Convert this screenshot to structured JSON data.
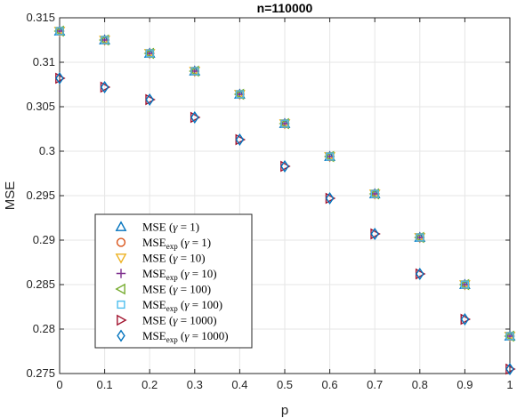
{
  "chart_data": {
    "type": "scatter",
    "title": "n=110000",
    "xlabel": "p",
    "ylabel": "MSE",
    "xlim": [
      0,
      1
    ],
    "ylim": [
      0.275,
      0.315
    ],
    "grid": true,
    "legend_position": "bottom-left",
    "x": [
      0,
      0.1,
      0.2,
      0.3,
      0.4,
      0.5,
      0.6,
      0.7,
      0.8,
      0.9,
      1.0
    ],
    "xticks": [
      "0",
      "0.1",
      "0.2",
      "0.3",
      "0.4",
      "0.5",
      "0.6",
      "0.7",
      "0.8",
      "0.9",
      "1"
    ],
    "yticks": [
      {
        "value": 0.275,
        "label": "0.275"
      },
      {
        "value": 0.28,
        "label": "0.28"
      },
      {
        "value": 0.285,
        "label": "0.285"
      },
      {
        "value": 0.29,
        "label": "0.29"
      },
      {
        "value": 0.295,
        "label": "0.295"
      },
      {
        "value": 0.3,
        "label": "0.3"
      },
      {
        "value": 0.305,
        "label": "0.305"
      },
      {
        "value": 0.31,
        "label": "0.31"
      },
      {
        "value": 0.315,
        "label": "0.315"
      }
    ],
    "series": [
      {
        "name": "MSE (γ = 1)",
        "marker": "triangle-up",
        "color": "#0072BD",
        "values": [
          0.3135,
          0.3125,
          0.311,
          0.309,
          0.3064,
          0.3031,
          0.2994,
          0.2952,
          0.2903,
          0.285,
          0.2792
        ]
      },
      {
        "name": "MSE_exp (γ = 1)",
        "marker": "circle",
        "color": "#D95319",
        "values": [
          0.3135,
          0.3125,
          0.311,
          0.309,
          0.3064,
          0.3031,
          0.2994,
          0.2952,
          0.2903,
          0.285,
          0.2792
        ]
      },
      {
        "name": "MSE (γ = 10)",
        "marker": "triangle-down",
        "color": "#EDB120",
        "values": [
          0.3135,
          0.3125,
          0.311,
          0.309,
          0.3064,
          0.3031,
          0.2994,
          0.2952,
          0.2903,
          0.285,
          0.2792
        ]
      },
      {
        "name": "MSE_exp (γ = 10)",
        "marker": "plus",
        "color": "#7E2F8E",
        "values": [
          0.3135,
          0.3125,
          0.311,
          0.309,
          0.3064,
          0.3031,
          0.2994,
          0.2952,
          0.2903,
          0.285,
          0.2792
        ]
      },
      {
        "name": "MSE (γ = 100)",
        "marker": "triangle-left",
        "color": "#77AC30",
        "values": [
          0.3135,
          0.3125,
          0.311,
          0.309,
          0.3064,
          0.3031,
          0.2994,
          0.2952,
          0.2903,
          0.285,
          0.2792
        ]
      },
      {
        "name": "MSE_exp (γ = 100)",
        "marker": "square",
        "color": "#4DBEEE",
        "values": [
          0.3135,
          0.3125,
          0.311,
          0.309,
          0.3064,
          0.3031,
          0.2994,
          0.2952,
          0.2903,
          0.285,
          0.2792
        ]
      },
      {
        "name": "MSE (γ = 1000)",
        "marker": "triangle-right",
        "color": "#A2142F",
        "values": [
          0.3082,
          0.3072,
          0.3058,
          0.3038,
          0.3013,
          0.2983,
          0.2947,
          0.2907,
          0.2862,
          0.2811,
          0.2755
        ]
      },
      {
        "name": "MSE_exp (γ = 1000)",
        "marker": "diamond",
        "color": "#0072BD",
        "values": [
          0.3082,
          0.3072,
          0.3058,
          0.3038,
          0.3013,
          0.2983,
          0.2947,
          0.2907,
          0.2862,
          0.2811,
          0.2755
        ]
      }
    ],
    "legend": [
      {
        "base": "MSE",
        "sub": "",
        "gamma": "1"
      },
      {
        "base": "MSE",
        "sub": "exp",
        "gamma": "1"
      },
      {
        "base": "MSE",
        "sub": "",
        "gamma": "10"
      },
      {
        "base": "MSE",
        "sub": "exp",
        "gamma": "10"
      },
      {
        "base": "MSE",
        "sub": "",
        "gamma": "100"
      },
      {
        "base": "MSE",
        "sub": "exp",
        "gamma": "100"
      },
      {
        "base": "MSE",
        "sub": "",
        "gamma": "1000"
      },
      {
        "base": "MSE",
        "sub": "exp",
        "gamma": "1000"
      }
    ]
  }
}
